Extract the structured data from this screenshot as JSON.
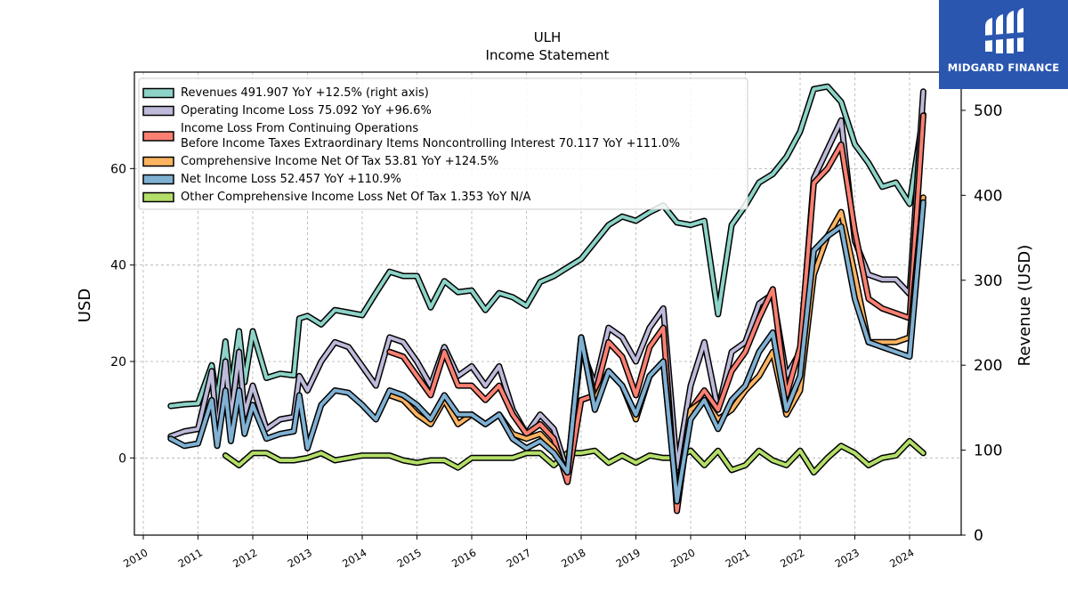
{
  "brand": {
    "name": "MIDGARD FINANCE",
    "bg_color": "#2a56b0"
  },
  "chart_data": {
    "type": "line",
    "title": "ULH",
    "subtitle": "Income Statement",
    "ylabel": "USD",
    "y2label": "Revenue (USD)",
    "ylim": [
      -16,
      80
    ],
    "y2lim": [
      0,
      545
    ],
    "xlim": [
      2009.9,
      2024.9
    ],
    "yticks": [
      0,
      20,
      40,
      60
    ],
    "y2ticks": [
      0,
      100,
      200,
      300,
      400,
      500
    ],
    "xticks": [
      "2010",
      "2011",
      "2012",
      "2013",
      "2014",
      "2015",
      "2016",
      "2017",
      "2018",
      "2019",
      "2020",
      "2021",
      "2022",
      "2023",
      "2024"
    ],
    "grid": true,
    "legend_position": "top-left",
    "series": [
      {
        "name": "Revenues",
        "legend": "Revenues  491.907 YoY +12.5% (right axis)",
        "axis": "right",
        "color": "#8dd3c7",
        "x": [
          2010.5,
          2010.75,
          2011.0,
          2011.25,
          2011.35,
          2011.5,
          2011.6,
          2011.75,
          2011.85,
          2012.0,
          2012.25,
          2012.5,
          2012.75,
          2012.85,
          2013.0,
          2013.25,
          2013.5,
          2013.75,
          2014.0,
          2014.25,
          2014.5,
          2014.75,
          2015.0,
          2015.25,
          2015.5,
          2015.75,
          2016.0,
          2016.25,
          2016.5,
          2016.75,
          2017.0,
          2017.25,
          2017.5,
          2017.75,
          2018.0,
          2018.25,
          2018.5,
          2018.75,
          2019.0,
          2019.25,
          2019.5,
          2019.75,
          2020.0,
          2020.25,
          2020.5,
          2020.75,
          2021.0,
          2021.25,
          2021.5,
          2021.75,
          2022.0,
          2022.25,
          2022.5,
          2022.75,
          2023.0,
          2023.25,
          2023.5,
          2023.75,
          2024.0,
          2024.25
        ],
        "values": [
          152,
          154,
          155,
          200,
          158,
          228,
          170,
          240,
          180,
          240,
          185,
          190,
          188,
          255,
          258,
          248,
          265,
          262,
          259,
          285,
          310,
          305,
          305,
          268,
          299,
          286,
          288,
          265,
          285,
          280,
          270,
          298,
          305,
          315,
          325,
          345,
          365,
          375,
          370,
          380,
          388,
          368,
          365,
          370,
          260,
          365,
          388,
          415,
          425,
          445,
          475,
          525,
          528,
          510,
          460,
          438,
          410,
          415,
          390,
          495
        ]
      },
      {
        "name": "Operating Income Loss",
        "legend": "Operating Income Loss  75.092 YoY +96.6%",
        "axis": "left",
        "color": "#bebada",
        "x": [
          2010.5,
          2010.75,
          2011.0,
          2011.25,
          2011.35,
          2011.5,
          2011.6,
          2011.75,
          2011.85,
          2012.0,
          2012.25,
          2012.5,
          2012.75,
          2012.85,
          2013.0,
          2013.25,
          2013.5,
          2013.75,
          2014.0,
          2014.25,
          2014.5,
          2014.75,
          2015.0,
          2015.25,
          2015.5,
          2015.75,
          2016.0,
          2016.25,
          2016.5,
          2016.75,
          2017.0,
          2017.25,
          2017.5,
          2017.75,
          2018.0,
          2018.25,
          2018.5,
          2018.75,
          2019.0,
          2019.25,
          2019.5,
          2019.75,
          2020.0,
          2020.25,
          2020.5,
          2020.75,
          2021.0,
          2021.25,
          2021.5,
          2021.75,
          2022.0,
          2022.25,
          2022.5,
          2022.75,
          2023.0,
          2023.25,
          2023.5,
          2023.75,
          2024.0,
          2024.25
        ],
        "values": [
          4.5,
          5.5,
          6,
          18,
          5,
          20,
          8,
          22,
          9,
          15,
          6,
          8,
          8.5,
          17,
          14,
          20,
          24,
          23,
          19,
          15,
          25,
          24,
          20,
          15,
          23,
          17,
          19,
          15,
          19,
          10,
          5,
          9,
          6,
          -3,
          23,
          15,
          27,
          25,
          20,
          27,
          31,
          -2,
          15,
          24,
          10,
          22,
          24,
          32,
          34,
          17,
          22,
          58,
          64,
          70,
          45,
          38,
          37,
          37,
          34,
          76
        ]
      },
      {
        "name": "Income Loss From Continuing Operations Before Income Taxes Extraordinary Items Noncontrolling Interest",
        "legend": "Income Loss From Continuing Operations\nBefore Income Taxes Extraordinary Items Noncontrolling Interest  70.117 YoY +111.0%",
        "axis": "left",
        "color": "#fb8072",
        "x": [
          2014.5,
          2014.75,
          2015.0,
          2015.25,
          2015.5,
          2015.75,
          2016.0,
          2016.25,
          2016.5,
          2016.75,
          2017.0,
          2017.25,
          2017.5,
          2017.75,
          2018.0,
          2018.25,
          2018.5,
          2018.75,
          2019.0,
          2019.25,
          2019.5,
          2019.75,
          2020.0,
          2020.25,
          2020.5,
          2020.75,
          2021.0,
          2021.25,
          2021.5,
          2021.75,
          2022.0,
          2022.25,
          2022.5,
          2022.75,
          2023.0,
          2023.25,
          2023.5,
          2023.75,
          2024.0,
          2024.25
        ],
        "values": [
          22,
          21,
          17,
          13,
          22,
          15,
          15,
          12,
          15,
          9,
          5,
          7,
          4,
          -5,
          12,
          13,
          24,
          21,
          13,
          23,
          27,
          -11,
          10,
          14,
          10,
          18,
          22,
          29,
          35,
          13,
          23,
          57,
          60,
          65,
          47,
          33,
          31,
          30,
          29,
          71
        ]
      },
      {
        "name": "Comprehensive Income Net Of Tax",
        "legend": "Comprehensive Income Net Of Tax  53.81 YoY +124.5%",
        "axis": "left",
        "color": "#fdb462",
        "x": [
          2014.5,
          2014.75,
          2015.0,
          2015.25,
          2015.5,
          2015.75,
          2016.0,
          2016.25,
          2016.5,
          2016.75,
          2017.0,
          2017.25,
          2017.5,
          2017.75,
          2018.0,
          2018.25,
          2018.5,
          2018.75,
          2019.0,
          2019.25,
          2019.5,
          2019.75,
          2020.0,
          2020.25,
          2020.5,
          2020.75,
          2021.0,
          2021.25,
          2021.5,
          2021.75,
          2022.0,
          2022.25,
          2022.5,
          2022.75,
          2023.0,
          2023.25,
          2023.5,
          2023.75,
          2024.0,
          2024.25
        ],
        "values": [
          13,
          12,
          9,
          7,
          12,
          7,
          9,
          7,
          9,
          5,
          4,
          5,
          2,
          -3,
          25,
          12,
          18,
          15,
          8,
          17,
          20,
          -8,
          10,
          12,
          8,
          10,
          14,
          17,
          22,
          9,
          14,
          38,
          46,
          51,
          38,
          24,
          24,
          24,
          25,
          54
        ]
      },
      {
        "name": "Net Income Loss",
        "legend": "Net Income Loss  52.457 YoY +110.9%",
        "axis": "left",
        "color": "#80b1d3",
        "x": [
          2010.5,
          2010.75,
          2011.0,
          2011.25,
          2011.35,
          2011.5,
          2011.6,
          2011.75,
          2011.85,
          2012.0,
          2012.25,
          2012.5,
          2012.75,
          2012.85,
          2013.0,
          2013.25,
          2013.5,
          2013.75,
          2014.0,
          2014.25,
          2014.5,
          2014.75,
          2015.0,
          2015.25,
          2015.5,
          2015.75,
          2016.0,
          2016.25,
          2016.5,
          2016.75,
          2017.0,
          2017.25,
          2017.5,
          2017.75,
          2018.0,
          2018.25,
          2018.5,
          2018.75,
          2019.0,
          2019.25,
          2019.5,
          2019.75,
          2020.0,
          2020.25,
          2020.5,
          2020.75,
          2021.0,
          2021.25,
          2021.5,
          2021.75,
          2022.0,
          2022.25,
          2022.5,
          2022.75,
          2023.0,
          2023.25,
          2023.5,
          2023.75,
          2024.0,
          2024.25
        ],
        "values": [
          4,
          2.5,
          3,
          12,
          2.5,
          14,
          3.5,
          14,
          5,
          11,
          4,
          5,
          5.5,
          13,
          2,
          11,
          14,
          13.5,
          11,
          8,
          14,
          13,
          11,
          8,
          13,
          9,
          9,
          7,
          9,
          4,
          2,
          3.5,
          1,
          -3,
          25,
          10,
          18,
          15,
          9,
          17,
          20,
          -9,
          8,
          12,
          6,
          12,
          15,
          22,
          26,
          10,
          17,
          43,
          46,
          48,
          33,
          24,
          23,
          22,
          21,
          53
        ]
      },
      {
        "name": "Other Comprehensive Income Loss Net Of Tax",
        "legend": "Other Comprehensive Income Loss Net Of Tax  1.353 YoY N/A",
        "axis": "left",
        "color": "#b3de69",
        "x": [
          2011.5,
          2011.75,
          2012.0,
          2012.25,
          2012.5,
          2012.75,
          2013.0,
          2013.25,
          2013.5,
          2013.75,
          2014.0,
          2014.25,
          2014.5,
          2014.75,
          2015.0,
          2015.25,
          2015.5,
          2015.75,
          2016.0,
          2016.25,
          2016.5,
          2016.75,
          2017.0,
          2017.25,
          2017.5,
          2017.75,
          2018.0,
          2018.25,
          2018.5,
          2018.75,
          2019.0,
          2019.25,
          2019.5,
          2019.75,
          2020.0,
          2020.25,
          2020.5,
          2020.75,
          2021.0,
          2021.25,
          2021.5,
          2021.75,
          2022.0,
          2022.25,
          2022.5,
          2022.75,
          2023.0,
          2023.25,
          2023.5,
          2023.75,
          2024.0,
          2024.25
        ],
        "values": [
          0.5,
          -1.5,
          1,
          1,
          -0.5,
          -0.5,
          0,
          1,
          -0.5,
          0,
          0.5,
          0.5,
          0.5,
          -0.5,
          -1,
          -0.5,
          -0.5,
          -2,
          0,
          0,
          0,
          0,
          1,
          1,
          -1.5,
          1,
          1,
          1.5,
          -1,
          0.5,
          -1,
          0.5,
          0,
          0,
          1.5,
          -1.5,
          1.5,
          -2.5,
          -1.5,
          1.5,
          -0.5,
          -1.5,
          1.5,
          -3,
          0,
          2.5,
          1,
          -1.5,
          0,
          0.5,
          3.5,
          1
        ]
      }
    ]
  }
}
